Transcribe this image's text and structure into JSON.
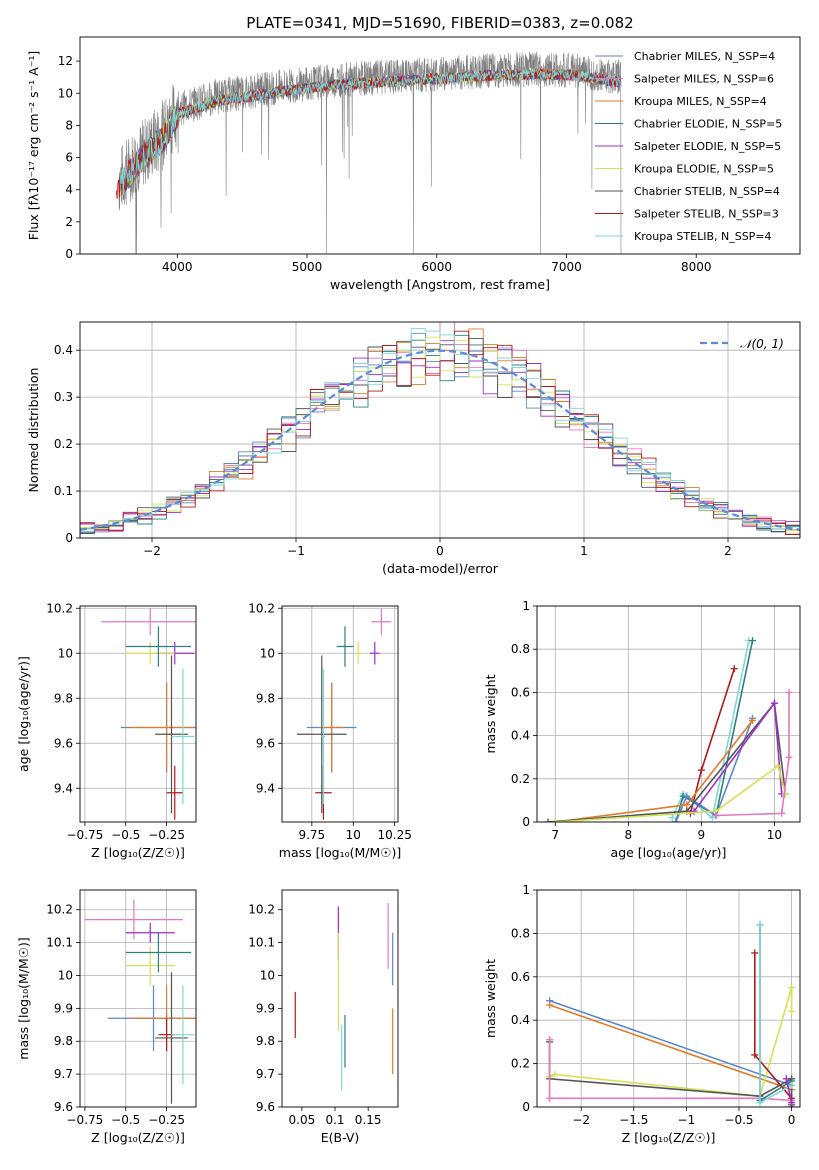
{
  "figure": {
    "title": "PLATE=0341, MJD=51690, FIBERID=0383, z=0.082"
  },
  "chart_data": [
    {
      "id": "spectrum",
      "type": "line",
      "xlabel": "wavelength [Angstrom, rest frame]",
      "ylabel": "Flux [fλ10⁻¹⁷ erg cm⁻² s⁻¹ A⁻¹]",
      "xlim": [
        3250,
        8800
      ],
      "ylim": [
        0,
        13.5
      ],
      "xticks": [
        4000,
        5000,
        6000,
        7000,
        8000
      ],
      "yticks": [
        0,
        2,
        4,
        6,
        8,
        10,
        12
      ],
      "grid": false,
      "legend_position": "right",
      "observed_color": "#808080",
      "continuum_shape": {
        "x": [
          3550,
          3700,
          3900,
          4000,
          4300,
          4800,
          5200,
          5600,
          6000,
          6400,
          6800,
          7100,
          7400
        ],
        "y": [
          4.5,
          6.0,
          7.5,
          9.0,
          9.8,
          10.4,
          10.8,
          11.0,
          11.2,
          11.4,
          11.5,
          11.4,
          11.0
        ]
      },
      "series": [
        {
          "name": "Chabrier MILES, N_SSP=4",
          "color": "#5f86c9"
        },
        {
          "name": "Salpeter MILES, N_SSP=6",
          "color": "#e377c2"
        },
        {
          "name": "Kroupa MILES, N_SSP=4",
          "color": "#e07b2c"
        },
        {
          "name": "Chabrier ELODIE, N_SSP=5",
          "color": "#2f7f7f"
        },
        {
          "name": "Salpeter ELODIE, N_SSP=5",
          "color": "#9b2fc9"
        },
        {
          "name": "Kroupa ELODIE, N_SSP=5",
          "color": "#d4e157"
        },
        {
          "name": "Chabrier STELIB, N_SSP=4",
          "color": "#555555"
        },
        {
          "name": "Salpeter STELIB, N_SSP=3",
          "color": "#b11a1a"
        },
        {
          "name": "Kroupa STELIB, N_SSP=4",
          "color": "#7fd7d7"
        }
      ]
    },
    {
      "id": "residuals",
      "type": "line",
      "xlabel": "(data-model)/error",
      "ylabel": "Normed distribution",
      "xlim": [
        -2.5,
        2.5
      ],
      "ylim": [
        0,
        0.46
      ],
      "xticks": [
        -2,
        -1,
        0,
        1,
        2
      ],
      "yticks": [
        0.0,
        0.1,
        0.2,
        0.3,
        0.4
      ],
      "grid": true,
      "legend": "𝒩(0, 1)",
      "legend_position": "top-right",
      "gauss_color": "#5b8bd6",
      "hist_colors": [
        "#5f86c9",
        "#e377c2",
        "#e07b2c",
        "#2f7f7f",
        "#9b2fc9",
        "#d4e157",
        "#555555",
        "#b11a1a",
        "#7fd7d7"
      ]
    },
    {
      "id": "z-age",
      "type": "scatter",
      "xlabel": "Z [log₁₀(Z/Z☉)]",
      "ylabel": "age  [log₁₀(age/yr)]",
      "xlim": [
        -0.78,
        -0.07
      ],
      "ylim": [
        9.25,
        10.21
      ],
      "xticks": [
        -0.75,
        -0.5,
        -0.25
      ],
      "yticks": [
        9.4,
        9.6,
        9.8,
        10.0,
        10.2
      ],
      "grid": true,
      "points": [
        {
          "color": "#e377c2",
          "x": -0.35,
          "xerr": 0.3,
          "y": 10.14,
          "yerr": 0.06
        },
        {
          "color": "#9b2fc9",
          "x": -0.2,
          "xerr": 0.12,
          "y": 10.0,
          "yerr": 0.05
        },
        {
          "color": "#d4e157",
          "x": -0.35,
          "xerr": 0.15,
          "y": 10.0,
          "yerr": 0.05
        },
        {
          "color": "#2f7f7f",
          "x": -0.3,
          "xerr": 0.2,
          "y": 10.03,
          "yerr": 0.09
        },
        {
          "color": "#5f86c9",
          "x": -0.25,
          "xerr": 0.28,
          "y": 9.67,
          "yerr": 0.2
        },
        {
          "color": "#e07b2c",
          "x": -0.25,
          "xerr": 0.22,
          "y": 9.67,
          "yerr": 0.2
        },
        {
          "color": "#555555",
          "x": -0.22,
          "xerr": 0.1,
          "y": 9.64,
          "yerr": 0.35
        },
        {
          "color": "#b11a1a",
          "x": -0.2,
          "xerr": 0.05,
          "y": 9.38,
          "yerr": 0.12
        },
        {
          "color": "#7fd7d7",
          "x": -0.15,
          "xerr": 0.07,
          "y": 9.63,
          "yerr": 0.3
        }
      ]
    },
    {
      "id": "mass-age",
      "type": "scatter",
      "xlabel": "mass [log₁₀(M/M☉)]",
      "ylabel": "",
      "xlim": [
        9.57,
        10.27
      ],
      "ylim": [
        9.25,
        10.21
      ],
      "xticks": [
        9.75,
        10.0,
        10.25
      ],
      "yticks": [
        9.4,
        9.6,
        9.8,
        10.0,
        10.2
      ],
      "grid": true,
      "points": [
        {
          "color": "#e377c2",
          "x": 10.17,
          "xerr": 0.06,
          "y": 10.14,
          "yerr": 0.06
        },
        {
          "color": "#9b2fc9",
          "x": 10.13,
          "xerr": 0.03,
          "y": 10.0,
          "yerr": 0.05
        },
        {
          "color": "#d4e157",
          "x": 10.03,
          "xerr": 0.02,
          "y": 10.0,
          "yerr": 0.05
        },
        {
          "color": "#2f7f7f",
          "x": 9.95,
          "xerr": 0.05,
          "y": 10.03,
          "yerr": 0.09
        },
        {
          "color": "#5f86c9",
          "x": 9.87,
          "xerr": 0.15,
          "y": 9.67,
          "yerr": 0.2
        },
        {
          "color": "#e07b2c",
          "x": 9.87,
          "xerr": 0.07,
          "y": 9.67,
          "yerr": 0.2
        },
        {
          "color": "#555555",
          "x": 9.81,
          "xerr": 0.15,
          "y": 9.64,
          "yerr": 0.35
        },
        {
          "color": "#b11a1a",
          "x": 9.82,
          "xerr": 0.05,
          "y": 9.38,
          "yerr": 0.12
        },
        {
          "color": "#7fd7d7",
          "x": 9.82,
          "xerr": 0.01,
          "y": 9.63,
          "yerr": 0.3
        }
      ]
    },
    {
      "id": "age-weight",
      "type": "line",
      "xlabel": "age  [log₁₀(age/yr)]",
      "ylabel": "mass weight",
      "xlim": [
        6.75,
        10.35
      ],
      "ylim": [
        0,
        1.0
      ],
      "xticks": [
        7,
        8,
        9,
        10
      ],
      "yticks": [
        0.0,
        0.2,
        0.4,
        0.6,
        0.8,
        1.0
      ],
      "grid": true,
      "series": [
        {
          "color": "#b11a1a",
          "x": [
            8.85,
            9.0,
            9.45
          ],
          "y": [
            0.04,
            0.24,
            0.71
          ]
        },
        {
          "color": "#7fd7d7",
          "x": [
            8.6,
            8.75,
            9.15,
            9.65
          ],
          "y": [
            0.02,
            0.13,
            0.02,
            0.84
          ]
        },
        {
          "color": "#2f7f7f",
          "x": [
            8.65,
            8.75,
            9.2,
            9.7
          ],
          "y": [
            0.0,
            0.12,
            0.03,
            0.84
          ]
        },
        {
          "color": "#5f86c9",
          "x": [
            8.65,
            8.8,
            9.2,
            9.7
          ],
          "y": [
            0.0,
            0.12,
            0.03,
            0.48
          ]
        },
        {
          "color": "#e07b2c",
          "x": [
            7.0,
            8.8,
            9.7
          ],
          "y": [
            0.0,
            0.08,
            0.47
          ]
        },
        {
          "color": "#555555",
          "x": [
            6.9,
            8.8,
            10.0,
            10.15
          ],
          "y": [
            0.0,
            0.05,
            0.55,
            0.13
          ]
        },
        {
          "color": "#9b2fc9",
          "x": [
            8.9,
            10.0,
            10.1
          ],
          "y": [
            0.05,
            0.55,
            0.13
          ]
        },
        {
          "color": "#d4e157",
          "x": [
            7.0,
            9.2,
            10.05,
            10.15
          ],
          "y": [
            0.0,
            0.05,
            0.26,
            0.13
          ]
        },
        {
          "color": "#e377c2",
          "x": [
            9.2,
            10.1,
            10.2,
            10.2
          ],
          "y": [
            0.03,
            0.04,
            0.3,
            0.6
          ]
        }
      ]
    },
    {
      "id": "z-mass",
      "type": "scatter",
      "xlabel": "Z [log₁₀(Z/Z☉)]",
      "ylabel": "mass [log₁₀(M/M☉)]",
      "xlim": [
        -0.78,
        -0.07
      ],
      "ylim": [
        9.6,
        10.26
      ],
      "xticks": [
        -0.75,
        -0.5,
        -0.25
      ],
      "yticks": [
        9.6,
        9.7,
        9.8,
        9.9,
        10.0,
        10.1,
        10.2
      ],
      "grid": true,
      "points": [
        {
          "color": "#e377c2",
          "x": -0.45,
          "xerr": 0.3,
          "y": 10.17,
          "yerr": 0.06
        },
        {
          "color": "#9b2fc9",
          "x": -0.35,
          "xerr": 0.15,
          "y": 10.13,
          "yerr": 0.03
        },
        {
          "color": "#d4e157",
          "x": -0.35,
          "xerr": 0.15,
          "y": 10.03,
          "yerr": 0.06
        },
        {
          "color": "#2f7f7f",
          "x": -0.3,
          "xerr": 0.2,
          "y": 10.07,
          "yerr": 0.06
        },
        {
          "color": "#5f86c9",
          "x": -0.33,
          "xerr": 0.28,
          "y": 9.87,
          "yerr": 0.1
        },
        {
          "color": "#e07b2c",
          "x": -0.25,
          "xerr": 0.22,
          "y": 9.87,
          "yerr": 0.1
        },
        {
          "color": "#555555",
          "x": -0.22,
          "xerr": 0.1,
          "y": 9.81,
          "yerr": 0.2
        },
        {
          "color": "#b11a1a",
          "x": -0.25,
          "xerr": 0.05,
          "y": 9.82,
          "yerr": 0.05
        },
        {
          "color": "#7fd7d7",
          "x": -0.15,
          "xerr": 0.07,
          "y": 9.82,
          "yerr": 0.15
        }
      ]
    },
    {
      "id": "ebv-mass",
      "type": "scatter",
      "xlabel": "E(B-V)",
      "ylabel": "",
      "xlim": [
        0.02,
        0.195
      ],
      "ylim": [
        9.6,
        10.26
      ],
      "xticks": [
        0.05,
        0.1,
        0.15
      ],
      "yticks": [
        9.6,
        9.7,
        9.8,
        9.9,
        10.0,
        10.1,
        10.2
      ],
      "grid": false,
      "points": [
        {
          "color": "#b11a1a",
          "x": 0.04,
          "y": 9.88,
          "yerr": 0.07
        },
        {
          "color": "#9b2fc9",
          "x": 0.105,
          "y": 10.13,
          "yerr": 0.08
        },
        {
          "color": "#d4e157",
          "x": 0.105,
          "y": 9.98,
          "yerr": 0.15
        },
        {
          "color": "#2f7f7f",
          "x": 0.115,
          "y": 9.8,
          "yerr": 0.08
        },
        {
          "color": "#7fd7d7",
          "x": 0.11,
          "y": 9.75,
          "yerr": 0.1
        },
        {
          "color": "#e377c2",
          "x": 0.18,
          "y": 10.12,
          "yerr": 0.1
        },
        {
          "color": "#5f86c9",
          "x": 0.187,
          "y": 10.05,
          "yerr": 0.08
        },
        {
          "color": "#e07b2c",
          "x": 0.187,
          "y": 9.8,
          "yerr": 0.1
        }
      ]
    },
    {
      "id": "z-weight",
      "type": "line",
      "xlabel": "Z [log₁₀(Z/Z☉)]",
      "ylabel": "mass weight",
      "xlim": [
        -2.42,
        0.08
      ],
      "ylim": [
        0,
        1.0
      ],
      "xticks": [
        -2.0,
        -1.5,
        -1.0,
        -0.5,
        0.0
      ],
      "yticks": [
        0.0,
        0.2,
        0.4,
        0.6,
        0.8,
        1.0
      ],
      "grid": true,
      "series": [
        {
          "color": "#5f86c9",
          "x": [
            -2.3,
            0.0,
            0.0
          ],
          "y": [
            0.49,
            0.1,
            0.13
          ]
        },
        {
          "color": "#e07b2c",
          "x": [
            -2.3,
            0.0
          ],
          "y": [
            0.47,
            0.08
          ]
        },
        {
          "color": "#d4e157",
          "x": [
            -2.3,
            -2.3,
            -2.25,
            -0.3,
            0.0,
            0.0
          ],
          "y": [
            0.3,
            0.14,
            0.15,
            0.05,
            0.55,
            0.44
          ]
        },
        {
          "color": "#555555",
          "x": [
            -2.3,
            -2.3,
            -0.3,
            0.0,
            0.0
          ],
          "y": [
            0.3,
            0.13,
            0.05,
            0.13,
            0.01
          ]
        },
        {
          "color": "#e377c2",
          "x": [
            -2.3,
            -2.3,
            -0.3,
            0.0
          ],
          "y": [
            0.31,
            0.04,
            0.04,
            0.03
          ]
        },
        {
          "color": "#b11a1a",
          "x": [
            -0.35,
            -0.35,
            0.0,
            0.0
          ],
          "y": [
            0.71,
            0.24,
            0.04,
            0.0
          ]
        },
        {
          "color": "#2f7f7f",
          "x": [
            -0.3,
            -0.3,
            0.0
          ],
          "y": [
            0.84,
            0.03,
            0.12
          ]
        },
        {
          "color": "#7fd7d7",
          "x": [
            -0.3,
            -0.3,
            0.0
          ],
          "y": [
            0.84,
            0.02,
            0.1
          ]
        },
        {
          "color": "#9b2fc9",
          "x": [
            -0.05,
            0.0
          ],
          "y": [
            0.13,
            0.02
          ]
        }
      ]
    }
  ]
}
